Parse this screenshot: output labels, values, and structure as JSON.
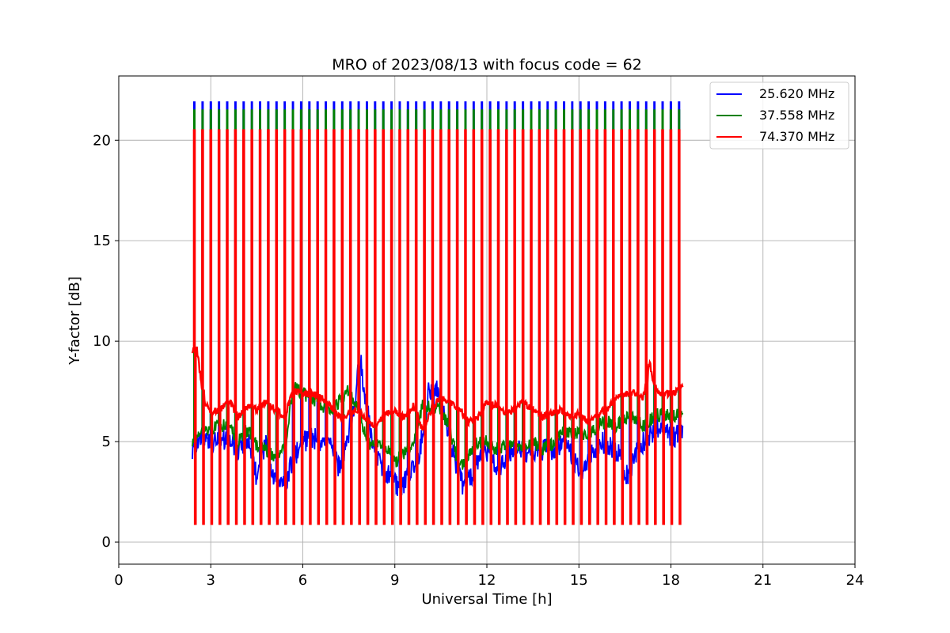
{
  "chart_data": {
    "type": "line",
    "title": "MRO of 2023/08/13 with focus code = 62",
    "xlabel": "Universal Time [h]",
    "ylabel": "Y-factor [dB]",
    "xlim": [
      0,
      24
    ],
    "ylim": [
      -1.1,
      23.2
    ],
    "xticks": [
      0,
      3,
      6,
      9,
      12,
      15,
      18,
      21,
      24
    ],
    "xtick_labels": [
      "0",
      "3",
      "6",
      "9",
      "12",
      "15",
      "18",
      "21",
      "24"
    ],
    "yticks": [
      0,
      5,
      10,
      15,
      20
    ],
    "ytick_labels": [
      "0",
      "5",
      "10",
      "15",
      "20"
    ],
    "grid": true,
    "legend_position": "top-right",
    "calibration_pulses": {
      "start_h": 2.45,
      "end_h": 18.25,
      "count": 60,
      "peak_levels": [
        21.9,
        21.5,
        20.5
      ],
      "low_levels": [
        1.0,
        1.1,
        0.9
      ]
    },
    "series": [
      {
        "name": "25.620 MHz",
        "color": "#0000ff",
        "x": [
          2.4,
          2.7,
          3.0,
          3.3,
          3.6,
          3.9,
          4.2,
          4.5,
          4.8,
          5.1,
          5.4,
          5.7,
          6.0,
          6.3,
          6.6,
          6.9,
          7.2,
          7.5,
          7.7,
          7.85,
          8.0,
          8.3,
          8.6,
          8.9,
          9.2,
          9.5,
          9.8,
          10.1,
          10.3,
          10.6,
          10.9,
          11.2,
          11.5,
          11.8,
          12.1,
          12.4,
          12.7,
          13.0,
          13.3,
          13.6,
          13.9,
          14.2,
          14.5,
          14.8,
          15.1,
          15.4,
          15.7,
          16.0,
          16.3,
          16.6,
          16.9,
          17.2,
          17.5,
          17.8,
          18.1,
          18.4
        ],
        "y": [
          4.6,
          5.3,
          4.9,
          5.0,
          5.1,
          4.6,
          5.2,
          3.2,
          4.9,
          3.0,
          2.8,
          4.2,
          5.0,
          5.2,
          5.0,
          4.8,
          3.6,
          5.4,
          7.0,
          9.5,
          7.5,
          4.6,
          3.6,
          3.2,
          2.6,
          3.6,
          4.4,
          7.5,
          7.8,
          6.4,
          4.4,
          2.8,
          3.2,
          4.6,
          4.4,
          3.6,
          4.4,
          4.8,
          4.2,
          4.5,
          4.6,
          4.6,
          5.0,
          4.2,
          3.2,
          4.4,
          5.0,
          4.8,
          4.4,
          3.2,
          4.6,
          5.2,
          5.6,
          5.4,
          5.2,
          5.5
        ]
      },
      {
        "name": "37.558 MHz",
        "color": "#008000",
        "x": [
          2.4,
          2.7,
          3.0,
          3.3,
          3.6,
          3.9,
          4.2,
          4.5,
          4.8,
          5.1,
          5.4,
          5.7,
          6.0,
          6.3,
          6.6,
          6.9,
          7.2,
          7.5,
          7.8,
          8.1,
          8.4,
          8.7,
          9.0,
          9.3,
          9.6,
          9.9,
          10.2,
          10.5,
          10.8,
          11.1,
          11.4,
          11.7,
          12.0,
          12.3,
          12.6,
          12.9,
          13.2,
          13.5,
          13.8,
          14.1,
          14.4,
          14.7,
          15.0,
          15.3,
          15.6,
          15.9,
          16.2,
          16.5,
          16.8,
          17.1,
          17.4,
          17.7,
          18.0,
          18.4
        ],
        "y": [
          5.0,
          5.6,
          5.6,
          5.8,
          5.8,
          5.0,
          5.6,
          4.8,
          4.6,
          4.2,
          4.6,
          7.8,
          7.4,
          7.2,
          6.8,
          6.6,
          7.0,
          7.6,
          6.6,
          5.0,
          4.8,
          4.8,
          4.0,
          4.4,
          5.0,
          6.8,
          6.8,
          6.6,
          5.6,
          3.6,
          4.2,
          5.0,
          5.0,
          4.6,
          4.8,
          5.0,
          4.6,
          5.0,
          4.6,
          4.8,
          5.4,
          5.4,
          5.4,
          5.2,
          5.8,
          6.0,
          5.8,
          6.2,
          6.2,
          5.8,
          6.2,
          6.4,
          6.2,
          6.4
        ]
      },
      {
        "name": "74.370 MHz",
        "color": "#ff0000",
        "x": [
          2.4,
          2.55,
          2.75,
          3.0,
          3.3,
          3.6,
          3.9,
          4.2,
          4.5,
          4.8,
          5.1,
          5.4,
          5.7,
          6.0,
          6.3,
          6.6,
          6.9,
          7.2,
          7.5,
          7.8,
          8.1,
          8.4,
          8.7,
          9.0,
          9.3,
          9.6,
          9.9,
          10.2,
          10.5,
          10.8,
          11.1,
          11.4,
          11.7,
          12.0,
          12.3,
          12.6,
          12.9,
          13.2,
          13.5,
          13.8,
          14.1,
          14.4,
          14.7,
          15.0,
          15.3,
          15.6,
          15.9,
          16.2,
          16.5,
          16.8,
          17.1,
          17.3,
          17.5,
          17.8,
          18.1,
          18.4
        ],
        "y": [
          9.5,
          9.6,
          7.2,
          6.4,
          6.6,
          7.0,
          6.2,
          6.8,
          6.6,
          7.0,
          6.6,
          6.2,
          7.6,
          7.4,
          7.4,
          7.2,
          6.8,
          6.2,
          6.4,
          6.6,
          6.0,
          5.8,
          6.4,
          6.6,
          6.2,
          6.8,
          5.6,
          6.6,
          7.2,
          7.0,
          6.6,
          6.0,
          6.2,
          7.0,
          6.8,
          6.4,
          6.6,
          7.0,
          6.6,
          6.2,
          6.4,
          6.6,
          6.2,
          6.4,
          6.0,
          6.4,
          6.6,
          7.2,
          7.4,
          7.4,
          7.2,
          9.0,
          7.4,
          7.4,
          7.4,
          7.8
        ]
      }
    ]
  }
}
